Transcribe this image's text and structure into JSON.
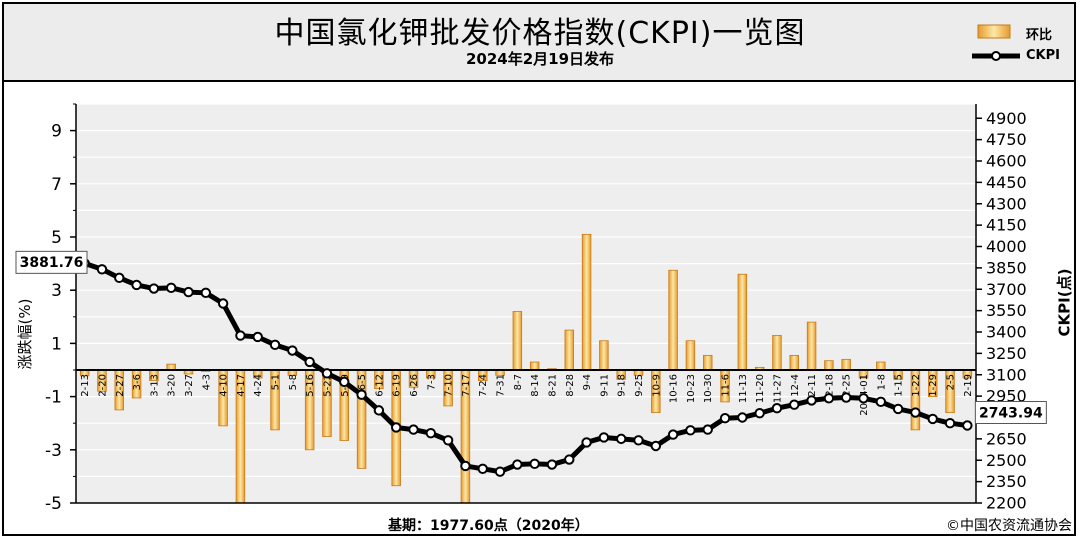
{
  "header": {
    "title": "中国氯化钾批发价格指数(CKPI)一览图",
    "subtitle": "2024年2月19日发布"
  },
  "legend": {
    "bar_label": "环比",
    "line_label": "CKPI"
  },
  "axes": {
    "left_label": "涨跌幅(%)",
    "right_label": "CKPI(点)",
    "left_ticks": [
      "9",
      "7",
      "5",
      "3",
      "1",
      "-1",
      "-3",
      "-5"
    ],
    "right_ticks": [
      "4900",
      "4750",
      "4600",
      "4450",
      "4300",
      "4150",
      "4000",
      "3850",
      "3700",
      "3550",
      "3400",
      "3250",
      "3100",
      "2950",
      "2800",
      "2650",
      "2500",
      "2350",
      "2200"
    ]
  },
  "footer": {
    "base": "基期：1977.60点（2020年）",
    "copyright": "©中国农资流通协会"
  },
  "colors": {
    "bar_fill_top": "#fbe1a0",
    "bar_fill_edge": "#e69a2a",
    "line": "#000000",
    "marker_fill": "#ffffff",
    "plot_bg": "#eeeeee"
  },
  "chart_data": {
    "type": "bar+line",
    "categories": [
      "2-13",
      "2-20",
      "2-27",
      "3-6",
      "3-13",
      "3-20",
      "3-27",
      "4-3",
      "4-10",
      "4-17",
      "4-24",
      "5-1",
      "5-8",
      "5-16",
      "5-22",
      "5-29",
      "6-5",
      "6-12",
      "6-19",
      "6-26",
      "7-3",
      "7-10",
      "7-17",
      "7-24",
      "7-31",
      "8-7",
      "8-14",
      "8-21",
      "8-28",
      "9-4",
      "9-11",
      "9-18",
      "9-25",
      "10-9",
      "10-16",
      "10-23",
      "10-30",
      "11-6",
      "11-13",
      "11-20",
      "11-27",
      "12-4",
      "12-11",
      "12-18",
      "12-25",
      "2024-01",
      "1-8",
      "1-15",
      "1-22",
      "1-29",
      "2-5",
      "2-19"
    ],
    "series": [
      {
        "name": "环比",
        "axis": "left",
        "values": [
          -0.22,
          -0.8,
          -1.5,
          -1.05,
          -0.4,
          0.22,
          -0.15,
          -0.05,
          -2.1,
          -5.0,
          -0.3,
          -2.25,
          -0.2,
          -3.0,
          -2.5,
          -2.65,
          -3.7,
          -0.7,
          -4.35,
          -0.65,
          -0.3,
          -1.35,
          -5.0,
          -0.4,
          -0.2,
          2.2,
          0.3,
          0.05,
          1.5,
          5.1,
          1.1,
          -0.35,
          -0.2,
          -1.6,
          3.75,
          1.1,
          0.55,
          -1.2,
          3.6,
          0.1,
          1.3,
          0.55,
          1.8,
          0.35,
          0.4,
          -0.3,
          0.3,
          -0.35,
          -2.25,
          -1.0,
          -1.6,
          -0.3
        ]
      },
      {
        "name": "CKPI",
        "axis": "right",
        "values": [
          3881.76,
          3840,
          3780,
          3730,
          3705,
          3710,
          3680,
          3675,
          3600,
          3375,
          3365,
          3310,
          3270,
          3190,
          3110,
          3050,
          2960,
          2850,
          2730,
          2715,
          2690,
          2640,
          2460,
          2440,
          2420,
          2470,
          2475,
          2470,
          2505,
          2625,
          2660,
          2650,
          2640,
          2600,
          2680,
          2710,
          2715,
          2795,
          2800,
          2830,
          2865,
          2890,
          2920,
          2935,
          2940,
          2935,
          2910,
          2860,
          2835,
          2790,
          2760,
          2743.94
        ]
      }
    ],
    "ylim_left": [
      -5,
      10
    ],
    "ylim_right": [
      2200,
      5000
    ],
    "start_label": "3881.76",
    "end_label": "2743.94",
    "grid": true
  }
}
